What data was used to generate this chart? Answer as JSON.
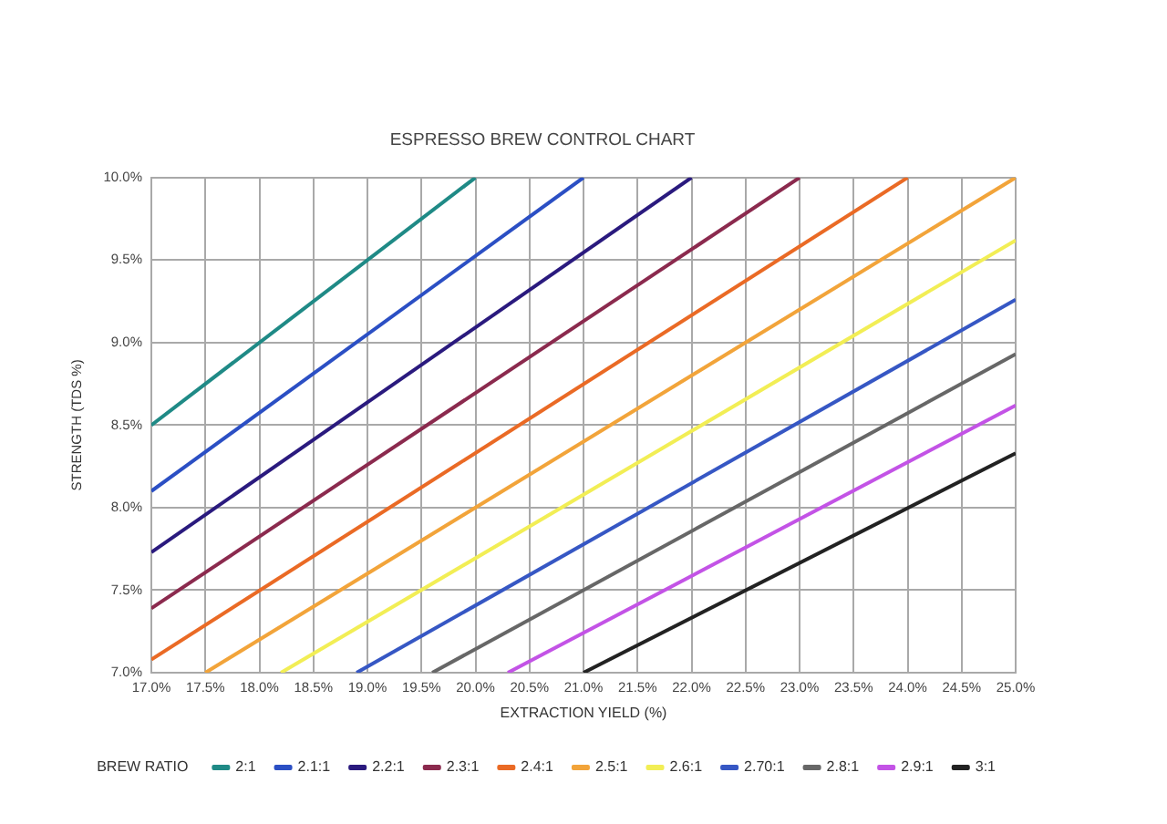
{
  "chart_data": {
    "type": "line",
    "title": "ESPRESSO BREW CONTROL CHART",
    "xlabel": "EXTRACTION YIELD (%)",
    "ylabel": "STRENGTH (TDS %)",
    "legend_title": "BREW RATIO",
    "series": [
      {
        "name": "2:1",
        "color": "#1f8a86",
        "x": [
          17,
          20
        ],
        "values": [
          8.5,
          10
        ]
      },
      {
        "name": "2.1:1",
        "color": "#2b4fc4",
        "x": [
          17,
          21
        ],
        "values": [
          8.1,
          10
        ]
      },
      {
        "name": "2.2:1",
        "color": "#2a1a7e",
        "x": [
          17,
          22
        ],
        "values": [
          7.73,
          10
        ]
      },
      {
        "name": "2.3:1",
        "color": "#8b2a4e",
        "x": [
          17,
          23
        ],
        "values": [
          7.39,
          10
        ]
      },
      {
        "name": "2.4:1",
        "color": "#ea6a25",
        "x": [
          17,
          24
        ],
        "values": [
          7.08,
          10
        ]
      },
      {
        "name": "2.5:1",
        "color": "#f2a43a",
        "x": [
          17.5,
          25
        ],
        "values": [
          7,
          10
        ]
      },
      {
        "name": "2.6:1",
        "color": "#f2ee55",
        "x": [
          18.2,
          25
        ],
        "values": [
          7,
          9.62
        ]
      },
      {
        "name": "2.70:1",
        "color": "#3657c4",
        "x": [
          18.9,
          25
        ],
        "values": [
          7,
          9.26
        ]
      },
      {
        "name": "2.8:1",
        "color": "#676767",
        "x": [
          19.6,
          25
        ],
        "values": [
          7,
          8.93
        ]
      },
      {
        "name": "2.9:1",
        "color": "#c353e6",
        "x": [
          20.3,
          25
        ],
        "values": [
          7,
          8.62
        ]
      },
      {
        "name": "3:1",
        "color": "#222222",
        "x": [
          21,
          25
        ],
        "values": [
          7,
          8.33
        ]
      }
    ],
    "xlim": [
      17,
      25
    ],
    "ylim": [
      7,
      10
    ],
    "xticks": [
      {
        "value": 17,
        "label": "17.0%"
      },
      {
        "value": 17.5,
        "label": "17.5%"
      },
      {
        "value": 18,
        "label": "18.0%"
      },
      {
        "value": 18.5,
        "label": "18.5%"
      },
      {
        "value": 19,
        "label": "19.0%"
      },
      {
        "value": 19.5,
        "label": "19.5%"
      },
      {
        "value": 20,
        "label": "20.0%"
      },
      {
        "value": 20.5,
        "label": "20.5%"
      },
      {
        "value": 21,
        "label": "21.0%"
      },
      {
        "value": 21.5,
        "label": "21.5%"
      },
      {
        "value": 22,
        "label": "22.0%"
      },
      {
        "value": 22.5,
        "label": "22.5%"
      },
      {
        "value": 23,
        "label": "23.0%"
      },
      {
        "value": 23.5,
        "label": "23.5%"
      },
      {
        "value": 24,
        "label": "24.0%"
      },
      {
        "value": 24.5,
        "label": "24.5%"
      },
      {
        "value": 25,
        "label": "25.0%"
      }
    ],
    "yticks": [
      {
        "value": 7,
        "label": "7.0%"
      },
      {
        "value": 7.5,
        "label": "7.5%"
      },
      {
        "value": 8,
        "label": "8.0%"
      },
      {
        "value": 8.5,
        "label": "8.5%"
      },
      {
        "value": 9,
        "label": "9.0%"
      },
      {
        "value": 9.5,
        "label": "9.5%"
      },
      {
        "value": 10,
        "label": "10.0%"
      }
    ],
    "grid": true,
    "legend": "bottom",
    "marker": "none",
    "line_style": "solid"
  }
}
